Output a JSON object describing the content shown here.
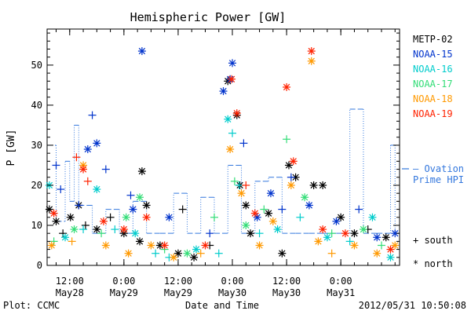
{
  "chart_data": {
    "type": "scatter",
    "title": "Hemispheric Power [GW]",
    "ylabel": "P [GW]",
    "xlabel": "Date and Time",
    "footer_left": "Plot: CCMC",
    "footer_right": "2012/05/31 10:50:08",
    "ylim": [
      0,
      59
    ],
    "xlim": [
      "2012-05-28 07:00",
      "2012-05-31 13:00"
    ],
    "yticks": [
      0,
      10,
      20,
      30,
      40,
      50
    ],
    "xticks": [
      {
        "time": "2012-05-28 12:00",
        "label": "12:00",
        "label2": "May28"
      },
      {
        "time": "2012-05-29 00:00",
        "label": "0:00",
        "label2": "May29"
      },
      {
        "time": "2012-05-29 12:00",
        "label": "12:00",
        "label2": "May29"
      },
      {
        "time": "2012-05-30 00:00",
        "label": "0:00",
        "label2": "May30"
      },
      {
        "time": "2012-05-30 12:00",
        "label": "12:00",
        "label2": "May30"
      },
      {
        "time": "2012-05-31 00:00",
        "label": "0:00",
        "label2": "May31"
      }
    ],
    "grid": false,
    "legend_position": "right",
    "series": [
      {
        "name": "METP-02",
        "color": "#000000",
        "points": [
          {
            "t": "2012-05-28 07:30",
            "y": 14,
            "m": "*"
          },
          {
            "t": "2012-05-28 09:00",
            "y": 11,
            "m": "*"
          },
          {
            "t": "2012-05-28 10:30",
            "y": 8,
            "m": "+"
          },
          {
            "t": "2012-05-28 12:10",
            "y": 12,
            "m": "*"
          },
          {
            "t": "2012-05-28 14:00",
            "y": 15,
            "m": "*"
          },
          {
            "t": "2012-05-28 15:30",
            "y": 10,
            "m": "+"
          },
          {
            "t": "2012-05-28 18:00",
            "y": 9,
            "m": "*"
          },
          {
            "t": "2012-05-28 21:00",
            "y": 12,
            "m": "+"
          },
          {
            "t": "2012-05-29 00:00",
            "y": 8,
            "m": "*"
          },
          {
            "t": "2012-05-29 03:30",
            "y": 6,
            "m": "*"
          },
          {
            "t": "2012-05-29 04:00",
            "y": 23.5,
            "m": "*"
          },
          {
            "t": "2012-05-29 05:00",
            "y": 15,
            "m": "*"
          },
          {
            "t": "2012-05-29 08:00",
            "y": 5,
            "m": "*"
          },
          {
            "t": "2012-05-29 12:00",
            "y": 3,
            "m": "*"
          },
          {
            "t": "2012-05-29 13:00",
            "y": 14,
            "m": "+"
          },
          {
            "t": "2012-05-29 15:30",
            "y": 2,
            "m": "*"
          },
          {
            "t": "2012-05-29 19:00",
            "y": 5,
            "m": "+"
          },
          {
            "t": "2012-05-29 23:00",
            "y": 46,
            "m": "*"
          },
          {
            "t": "2012-05-30 01:00",
            "y": 37.5,
            "m": "*"
          },
          {
            "t": "2012-05-30 01:40",
            "y": 20,
            "m": "*"
          },
          {
            "t": "2012-05-30 03:00",
            "y": 15,
            "m": "*"
          },
          {
            "t": "2012-05-30 04:00",
            "y": 8,
            "m": "*"
          },
          {
            "t": "2012-05-30 08:00",
            "y": 13,
            "m": "*"
          },
          {
            "t": "2012-05-30 11:00",
            "y": 3,
            "m": "*"
          },
          {
            "t": "2012-05-30 12:30",
            "y": 25,
            "m": "*"
          },
          {
            "t": "2012-05-30 14:00",
            "y": 22,
            "m": "*"
          },
          {
            "t": "2012-05-30 18:00",
            "y": 20,
            "m": "*"
          },
          {
            "t": "2012-05-30 20:00",
            "y": 20,
            "m": "*"
          },
          {
            "t": "2012-05-31 00:00",
            "y": 12,
            "m": "*"
          },
          {
            "t": "2012-05-31 03:00",
            "y": 8,
            "m": "*"
          },
          {
            "t": "2012-05-31 06:00",
            "y": 9,
            "m": "+"
          },
          {
            "t": "2012-05-31 10:00",
            "y": 7,
            "m": "*"
          }
        ]
      },
      {
        "name": "NOAA-15",
        "color": "#0033cc",
        "points": [
          {
            "t": "2012-05-28 09:00",
            "y": 25,
            "m": "+"
          },
          {
            "t": "2012-05-28 10:00",
            "y": 19,
            "m": "+"
          },
          {
            "t": "2012-05-28 14:00",
            "y": 15,
            "m": "+"
          },
          {
            "t": "2012-05-28 16:00",
            "y": 29,
            "m": "*"
          },
          {
            "t": "2012-05-28 17:00",
            "y": 37.5,
            "m": "+"
          },
          {
            "t": "2012-05-28 18:00",
            "y": 30.5,
            "m": "*"
          },
          {
            "t": "2012-05-28 20:00",
            "y": 24,
            "m": "+"
          },
          {
            "t": "2012-05-29 01:30",
            "y": 17.5,
            "m": "+"
          },
          {
            "t": "2012-05-29 02:00",
            "y": 14,
            "m": "*"
          },
          {
            "t": "2012-05-29 04:00",
            "y": 53.5,
            "m": "*"
          },
          {
            "t": "2012-05-29 10:00",
            "y": 12,
            "m": "*"
          },
          {
            "t": "2012-05-29 19:00",
            "y": 8,
            "m": "+"
          },
          {
            "t": "2012-05-29 22:00",
            "y": 43.5,
            "m": "*"
          },
          {
            "t": "2012-05-29 23:30",
            "y": 46.5,
            "m": "*"
          },
          {
            "t": "2012-05-30 00:00",
            "y": 50.5,
            "m": "*"
          },
          {
            "t": "2012-05-30 02:30",
            "y": 30.5,
            "m": "+"
          },
          {
            "t": "2012-05-30 05:30",
            "y": 12,
            "m": "*"
          },
          {
            "t": "2012-05-30 08:30",
            "y": 18,
            "m": "*"
          },
          {
            "t": "2012-05-30 11:00",
            "y": 14,
            "m": "+"
          },
          {
            "t": "2012-05-30 13:00",
            "y": 22,
            "m": "+"
          },
          {
            "t": "2012-05-30 17:00",
            "y": 15,
            "m": "*"
          },
          {
            "t": "2012-05-30 23:00",
            "y": 11,
            "m": "*"
          },
          {
            "t": "2012-05-31 04:00",
            "y": 14,
            "m": "+"
          },
          {
            "t": "2012-05-31 08:00",
            "y": 7,
            "m": "*"
          },
          {
            "t": "2012-05-31 12:00",
            "y": 8,
            "m": "*"
          }
        ]
      },
      {
        "name": "NOAA-16",
        "color": "#00cccc",
        "points": [
          {
            "t": "2012-05-28 07:30",
            "y": 20,
            "m": "*"
          },
          {
            "t": "2012-05-28 11:00",
            "y": 7,
            "m": "*"
          },
          {
            "t": "2012-05-28 15:00",
            "y": 9,
            "m": "+"
          },
          {
            "t": "2012-05-28 18:00",
            "y": 19,
            "m": "*"
          },
          {
            "t": "2012-05-28 22:00",
            "y": 9,
            "m": "+"
          },
          {
            "t": "2012-05-29 02:30",
            "y": 8,
            "m": "*"
          },
          {
            "t": "2012-05-29 07:00",
            "y": 3,
            "m": "+"
          },
          {
            "t": "2012-05-29 10:00",
            "y": 2,
            "m": "+"
          },
          {
            "t": "2012-05-29 16:00",
            "y": 4,
            "m": "*"
          },
          {
            "t": "2012-05-29 21:00",
            "y": 3,
            "m": "+"
          },
          {
            "t": "2012-05-29 23:00",
            "y": 36.5,
            "m": "*"
          },
          {
            "t": "2012-05-30 00:00",
            "y": 33,
            "m": "+"
          },
          {
            "t": "2012-05-30 01:30",
            "y": 20,
            "m": "+"
          },
          {
            "t": "2012-05-30 06:00",
            "y": 8,
            "m": "+"
          },
          {
            "t": "2012-05-30 10:00",
            "y": 9,
            "m": "*"
          },
          {
            "t": "2012-05-30 15:00",
            "y": 12,
            "m": "+"
          },
          {
            "t": "2012-05-30 21:00",
            "y": 7,
            "m": "*"
          },
          {
            "t": "2012-05-31 02:00",
            "y": 6,
            "m": "+"
          },
          {
            "t": "2012-05-31 07:00",
            "y": 12,
            "m": "*"
          },
          {
            "t": "2012-05-31 11:00",
            "y": 2,
            "m": "*"
          }
        ]
      },
      {
        "name": "NOAA-17",
        "color": "#33dd77",
        "points": [
          {
            "t": "2012-05-28 08:30",
            "y": 6,
            "m": "+"
          },
          {
            "t": "2012-05-28 13:00",
            "y": 9,
            "m": "*"
          },
          {
            "t": "2012-05-28 19:00",
            "y": 8,
            "m": "+"
          },
          {
            "t": "2012-05-29 00:30",
            "y": 12,
            "m": "*"
          },
          {
            "t": "2012-05-29 03:30",
            "y": 17,
            "m": "*"
          },
          {
            "t": "2012-05-29 09:00",
            "y": 4,
            "m": "+"
          },
          {
            "t": "2012-05-29 14:00",
            "y": 3,
            "m": "*"
          },
          {
            "t": "2012-05-29 20:00",
            "y": 12,
            "m": "+"
          },
          {
            "t": "2012-05-30 00:30",
            "y": 21,
            "m": "+"
          },
          {
            "t": "2012-05-30 03:00",
            "y": 10,
            "m": "*"
          },
          {
            "t": "2012-05-30 07:00",
            "y": 14,
            "m": "+"
          },
          {
            "t": "2012-05-30 12:00",
            "y": 31.5,
            "m": "+"
          },
          {
            "t": "2012-05-30 16:00",
            "y": 17,
            "m": "*"
          },
          {
            "t": "2012-05-30 22:00",
            "y": 8,
            "m": "+"
          },
          {
            "t": "2012-05-31 05:00",
            "y": 9,
            "m": "*"
          },
          {
            "t": "2012-05-31 09:00",
            "y": 5,
            "m": "+"
          }
        ]
      },
      {
        "name": "NOAA-18",
        "color": "#ff9900",
        "points": [
          {
            "t": "2012-05-28 08:00",
            "y": 5,
            "m": "*"
          },
          {
            "t": "2012-05-28 12:30",
            "y": 6,
            "m": "+"
          },
          {
            "t": "2012-05-28 15:00",
            "y": 25,
            "m": "*"
          },
          {
            "t": "2012-05-28 20:00",
            "y": 5,
            "m": "*"
          },
          {
            "t": "2012-05-29 01:00",
            "y": 3,
            "m": "*"
          },
          {
            "t": "2012-05-29 06:00",
            "y": 5,
            "m": "*"
          },
          {
            "t": "2012-05-29 11:00",
            "y": 2,
            "m": "*"
          },
          {
            "t": "2012-05-29 17:00",
            "y": 3,
            "m": "+"
          },
          {
            "t": "2012-05-29 23:30",
            "y": 29,
            "m": "*"
          },
          {
            "t": "2012-05-30 02:00",
            "y": 18,
            "m": "*"
          },
          {
            "t": "2012-05-30 06:00",
            "y": 5,
            "m": "*"
          },
          {
            "t": "2012-05-30 09:00",
            "y": 11,
            "m": "*"
          },
          {
            "t": "2012-05-30 13:00",
            "y": 20,
            "m": "*"
          },
          {
            "t": "2012-05-30 17:30",
            "y": 51,
            "m": "*"
          },
          {
            "t": "2012-05-30 19:00",
            "y": 6,
            "m": "*"
          },
          {
            "t": "2012-05-30 22:00",
            "y": 3,
            "m": "+"
          },
          {
            "t": "2012-05-31 03:00",
            "y": 5,
            "m": "*"
          },
          {
            "t": "2012-05-31 08:00",
            "y": 3,
            "m": "*"
          },
          {
            "t": "2012-05-31 12:00",
            "y": 5,
            "m": "*"
          }
        ]
      },
      {
        "name": "NOAA-19",
        "color": "#ff2200",
        "points": [
          {
            "t": "2012-05-28 08:30",
            "y": 13,
            "m": "*"
          },
          {
            "t": "2012-05-28 13:30",
            "y": 27,
            "m": "+"
          },
          {
            "t": "2012-05-28 15:00",
            "y": 24,
            "m": "*"
          },
          {
            "t": "2012-05-28 16:00",
            "y": 21,
            "m": "+"
          },
          {
            "t": "2012-05-28 19:30",
            "y": 11,
            "m": "*"
          },
          {
            "t": "2012-05-29 00:00",
            "y": 9,
            "m": "*"
          },
          {
            "t": "2012-05-29 05:00",
            "y": 12,
            "m": "*"
          },
          {
            "t": "2012-05-29 09:00",
            "y": 5,
            "m": "*"
          },
          {
            "t": "2012-05-29 18:00",
            "y": 5,
            "m": "*"
          },
          {
            "t": "2012-05-29 23:50",
            "y": 46.5,
            "m": "*"
          },
          {
            "t": "2012-05-30 01:00",
            "y": 38,
            "m": "*"
          },
          {
            "t": "2012-05-30 03:00",
            "y": 20,
            "m": "+"
          },
          {
            "t": "2012-05-30 05:00",
            "y": 13,
            "m": "*"
          },
          {
            "t": "2012-05-30 12:00",
            "y": 44.5,
            "m": "*"
          },
          {
            "t": "2012-05-30 13:30",
            "y": 26,
            "m": "*"
          },
          {
            "t": "2012-05-30 17:30",
            "y": 53.5,
            "m": "*"
          },
          {
            "t": "2012-05-30 20:00",
            "y": 9,
            "m": "*"
          },
          {
            "t": "2012-05-31 01:00",
            "y": 8,
            "m": "*"
          },
          {
            "t": "2012-05-31 11:00",
            "y": 4,
            "m": "*"
          }
        ]
      }
    ],
    "ovation_series": {
      "name": "Ovation Prime HPI",
      "color": "#3377dd",
      "points": [
        {
          "t": "2012-05-28 07:00",
          "y": 30
        },
        {
          "t": "2012-05-28 09:00",
          "y": 11
        },
        {
          "t": "2012-05-28 11:00",
          "y": 26
        },
        {
          "t": "2012-05-28 12:00",
          "y": 16
        },
        {
          "t": "2012-05-28 13:00",
          "y": 35
        },
        {
          "t": "2012-05-28 14:00",
          "y": 15
        },
        {
          "t": "2012-05-28 17:00",
          "y": 8
        },
        {
          "t": "2012-05-28 20:00",
          "y": 14
        },
        {
          "t": "2012-05-28 23:00",
          "y": 8
        },
        {
          "t": "2012-05-29 02:00",
          "y": 16
        },
        {
          "t": "2012-05-29 05:00",
          "y": 8
        },
        {
          "t": "2012-05-29 08:00",
          "y": 8
        },
        {
          "t": "2012-05-29 11:00",
          "y": 18
        },
        {
          "t": "2012-05-29 14:00",
          "y": 8
        },
        {
          "t": "2012-05-29 17:00",
          "y": 17
        },
        {
          "t": "2012-05-29 20:00",
          "y": 8
        },
        {
          "t": "2012-05-29 23:00",
          "y": 25
        },
        {
          "t": "2012-05-30 02:00",
          "y": 8
        },
        {
          "t": "2012-05-30 05:00",
          "y": 21
        },
        {
          "t": "2012-05-30 08:00",
          "y": 22
        },
        {
          "t": "2012-05-30 11:00",
          "y": 8
        },
        {
          "t": "2012-05-30 14:00",
          "y": 8
        },
        {
          "t": "2012-05-30 17:00",
          "y": 8
        },
        {
          "t": "2012-05-30 20:00",
          "y": 8
        },
        {
          "t": "2012-05-30 23:00",
          "y": 8
        },
        {
          "t": "2012-05-31 02:00",
          "y": 39
        },
        {
          "t": "2012-05-31 05:00",
          "y": 8
        },
        {
          "t": "2012-05-31 08:00",
          "y": 8
        },
        {
          "t": "2012-05-31 11:00",
          "y": 30
        },
        {
          "t": "2012-05-31 12:00",
          "y": 8
        }
      ]
    },
    "marker_legend": [
      {
        "symbol": "+",
        "label": "south"
      },
      {
        "symbol": "*",
        "label": "north"
      }
    ]
  }
}
